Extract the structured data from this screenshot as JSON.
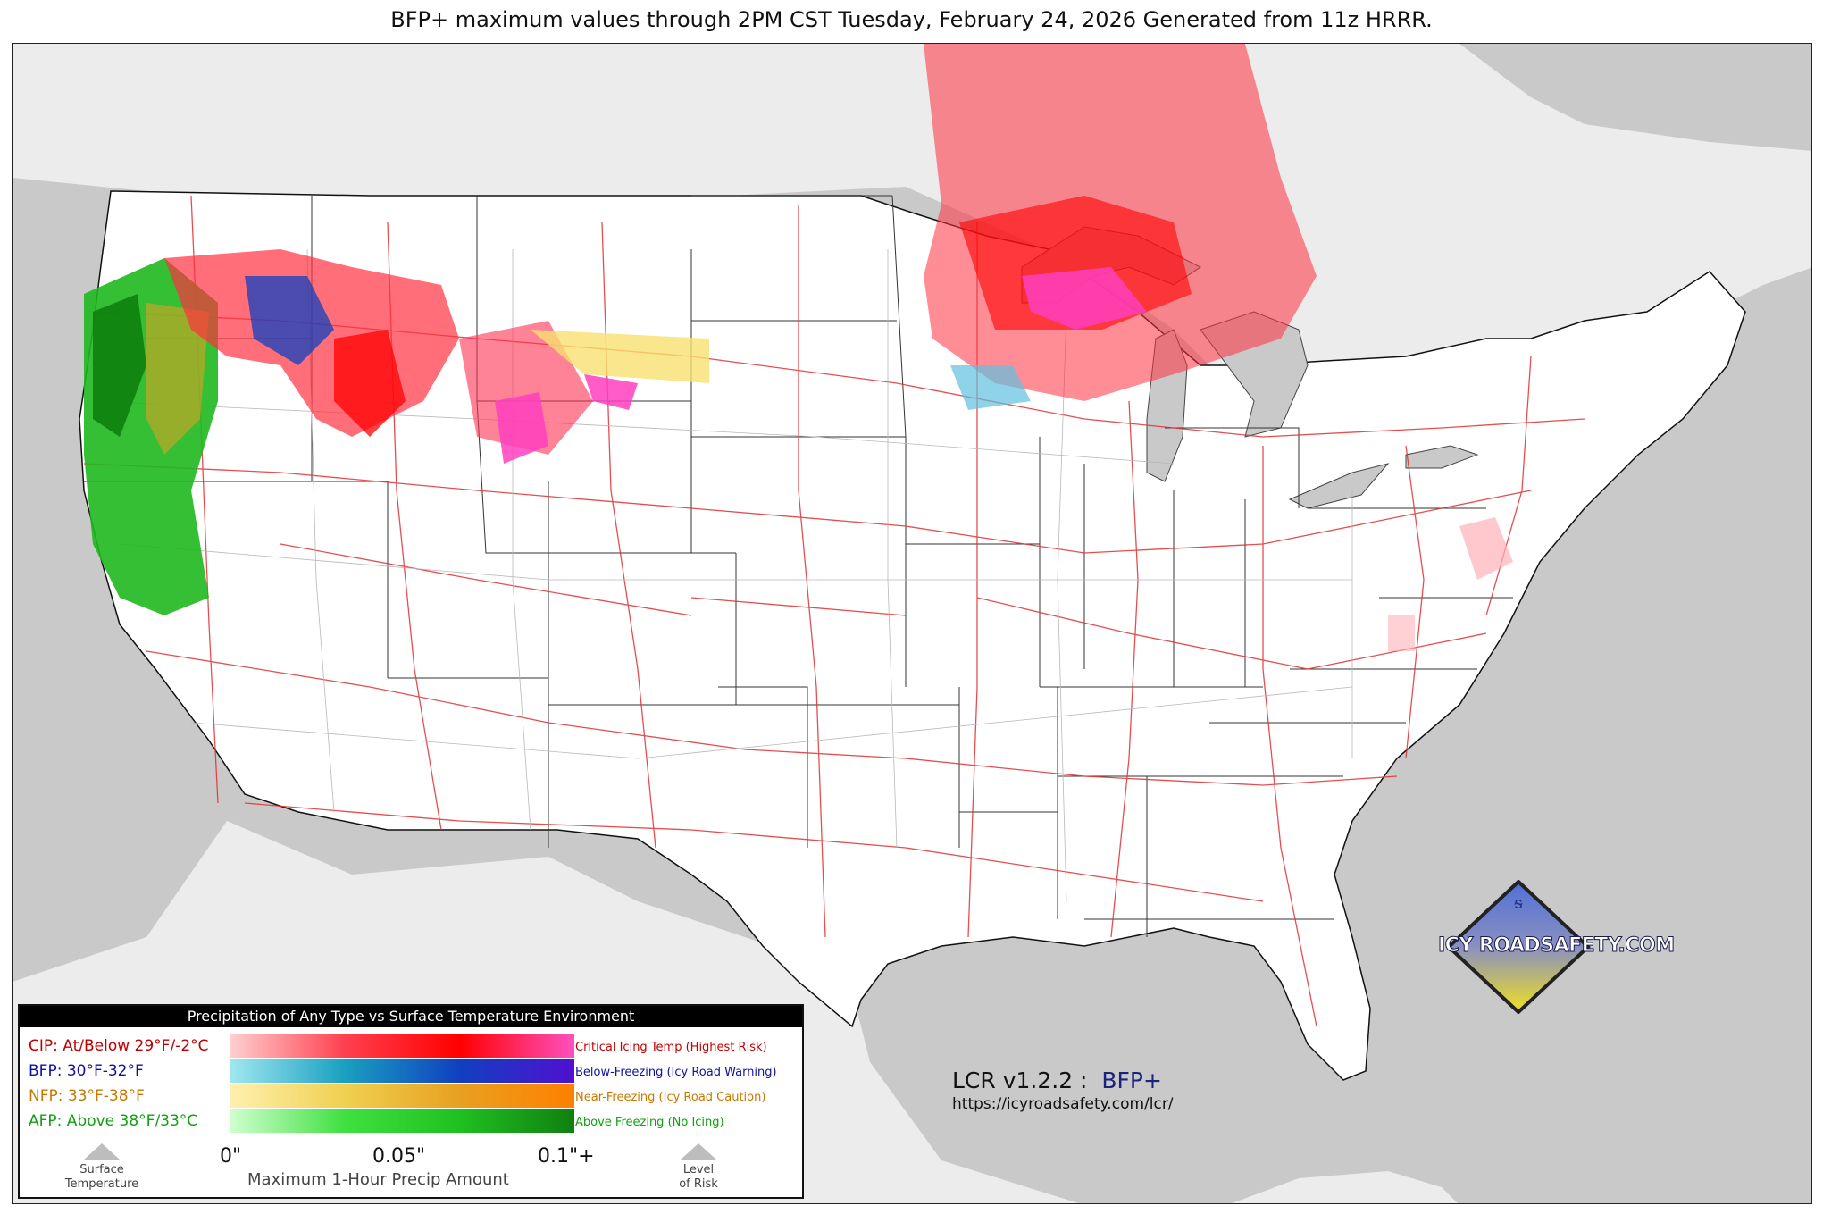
{
  "title": "BFP+ maximum values through 2PM CST Tuesday, February 24, 2026 Generated from 11z HRRR.",
  "legend": {
    "heading": "Precipitation of Any Type vs Surface Temperature Environment",
    "rows": [
      {
        "label": "CIP: At/Below 29°F/-2°C",
        "desc": "Critical Icing Temp (Highest Risk)",
        "color": "#c00000",
        "gradient": [
          "#ffd0d0",
          "#ff4050",
          "#ff0000",
          "#ff50c0"
        ]
      },
      {
        "label": "BFP: 30°F-32°F",
        "desc": "Below-Freezing (Icy Road Warning)",
        "color": "#1010a0",
        "gradient": [
          "#a0e8f0",
          "#1aa0c0",
          "#1040c0",
          "#5010d0"
        ]
      },
      {
        "label": "NFP: 33°F-38°F",
        "desc": "Near-Freezing (Icy Road Caution)",
        "color": "#c87800",
        "gradient": [
          "#fff0b0",
          "#f0d050",
          "#e8a020",
          "#ff8000"
        ]
      },
      {
        "label": "AFP: Above 38°F/33°C",
        "desc": "Above Freezing (No Icing)",
        "color": "#10a010",
        "gradient": [
          "#d0ffd0",
          "#40e040",
          "#20c020",
          "#108010"
        ]
      }
    ],
    "ticks": [
      "0\"",
      "0.05\"",
      "0.1\"+"
    ],
    "caption": "Maximum 1-Hour Precip Amount",
    "left_label_1": "Surface",
    "left_label_2": "Temperature",
    "right_label_1": "Level",
    "right_label_2": "of Risk"
  },
  "version_label": "LCR v1.2.2 :",
  "product": "BFP+",
  "url": "https://icyroadsafety.com/lcr/",
  "logo_text": "ICY ROADSAFETY.COM"
}
